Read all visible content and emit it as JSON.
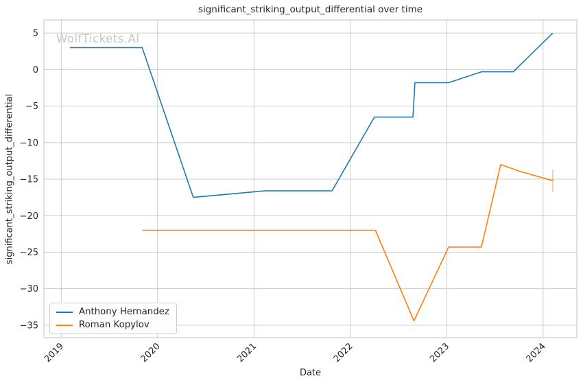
{
  "watermark": "WolfTickets.AI",
  "colors": {
    "grid": "#cccccc",
    "plot_border": "#cccccc",
    "text": "#262626",
    "watermark": "#c8c8c8",
    "series_blue": "#1f77b4",
    "series_orange": "#ff7f0e",
    "background": "#ffffff"
  },
  "chart_data": {
    "type": "line",
    "title": "significant_striking_output_differential over time",
    "xlabel": "Date",
    "ylabel": "significant_striking_output_differential",
    "grid": true,
    "legend_position": "lower left",
    "xlim": [
      2018.82,
      2024.35
    ],
    "ylim": [
      -36.7,
      6.8
    ],
    "x_ticks": [
      2019,
      2020,
      2021,
      2022,
      2023,
      2024
    ],
    "y_ticks": [
      5,
      0,
      -5,
      -10,
      -15,
      -20,
      -25,
      -30,
      -35
    ],
    "series": [
      {
        "name": "Anthony Hernandez",
        "color": "#1f77b4",
        "points": [
          [
            2019.09,
            3.0
          ],
          [
            2019.84,
            3.0
          ],
          [
            2020.37,
            -17.5
          ],
          [
            2021.11,
            -16.6
          ],
          [
            2021.81,
            -16.6
          ],
          [
            2022.25,
            -6.5
          ],
          [
            2022.65,
            -6.5
          ],
          [
            2022.67,
            -1.8
          ],
          [
            2023.02,
            -1.8
          ],
          [
            2023.36,
            -0.3
          ],
          [
            2023.69,
            -0.3
          ],
          [
            2024.1,
            5.0
          ]
        ]
      },
      {
        "name": "Roman Kopylov",
        "color": "#ff7f0e",
        "points": [
          [
            2019.84,
            -22.0
          ],
          [
            2022.26,
            -22.0
          ],
          [
            2022.66,
            -34.4
          ],
          [
            2023.02,
            -24.3
          ],
          [
            2023.36,
            -24.3
          ],
          [
            2023.56,
            -13.0
          ],
          [
            2023.75,
            -13.9
          ],
          [
            2024.1,
            -15.2
          ]
        ],
        "error_bar": {
          "x": 2024.1,
          "y_from": -13.7,
          "y_to": -16.8
        }
      }
    ]
  }
}
